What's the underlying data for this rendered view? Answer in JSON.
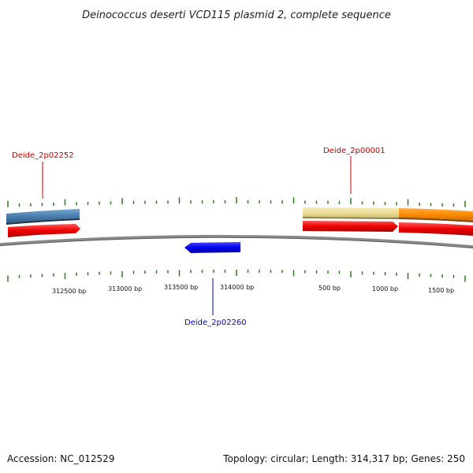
{
  "title": "Deinococcus deserti VCD115 plasmid 2, complete sequence",
  "footer": {
    "accession": "Accession: NC_012529",
    "summary": "Topology: circular; Length: 314,317 bp; Genes: 250"
  },
  "colors": {
    "backbone": "#888888",
    "tick": "#2e7d1e",
    "forward_gene": "#ee0000",
    "reverse_gene": "#0000ee",
    "cog_blue": "#4a7fb0",
    "cog_yellow": "#ecdf98",
    "cog_orange": "#ff8c00",
    "label_red": "#cc0000",
    "label_blue": "#0000cc"
  },
  "tick_labels": [
    "312500 bp",
    "313000 bp",
    "313500 bp",
    "314000 bp",
    "500 bp",
    "1000 bp",
    "1500 bp"
  ],
  "gene_labels": [
    {
      "name": "Deide_2p02252",
      "color": "red"
    },
    {
      "name": "Deide_2p00001",
      "color": "red"
    },
    {
      "name": "Deide_2p02260",
      "color": "blue"
    }
  ]
}
